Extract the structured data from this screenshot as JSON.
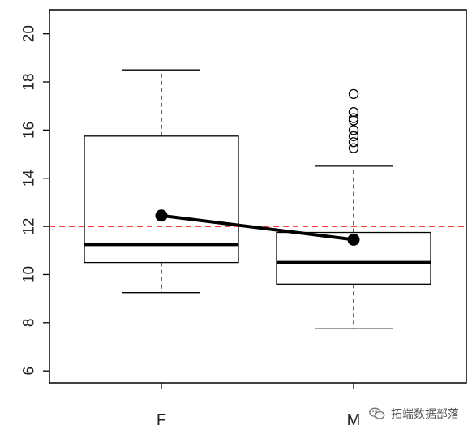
{
  "chart_data": {
    "type": "boxplot",
    "categories": [
      "F",
      "M"
    ],
    "ylim": [
      5.5,
      21
    ],
    "yticks": [
      6,
      8,
      10,
      12,
      14,
      16,
      18,
      20
    ],
    "boxes": [
      {
        "name": "F",
        "whisker_low": 9.25,
        "q1": 10.5,
        "median": 11.25,
        "q3": 15.75,
        "whisker_high": 18.5,
        "outliers": []
      },
      {
        "name": "M",
        "whisker_low": 7.75,
        "q1": 9.6,
        "median": 10.5,
        "q3": 11.75,
        "whisker_high": 14.5,
        "outliers": [
          15.25,
          15.5,
          15.75,
          16.0,
          16.4,
          16.5,
          16.75,
          17.5
        ]
      }
    ],
    "means": [
      12.45,
      11.45
    ],
    "reference_line": {
      "y": 12.0,
      "color": "#ff0000",
      "style": "dashed"
    },
    "mean_line_color": "#000000",
    "grid": false
  },
  "watermark": {
    "text": "拓端数据部落",
    "icon": "wechat-icon"
  }
}
